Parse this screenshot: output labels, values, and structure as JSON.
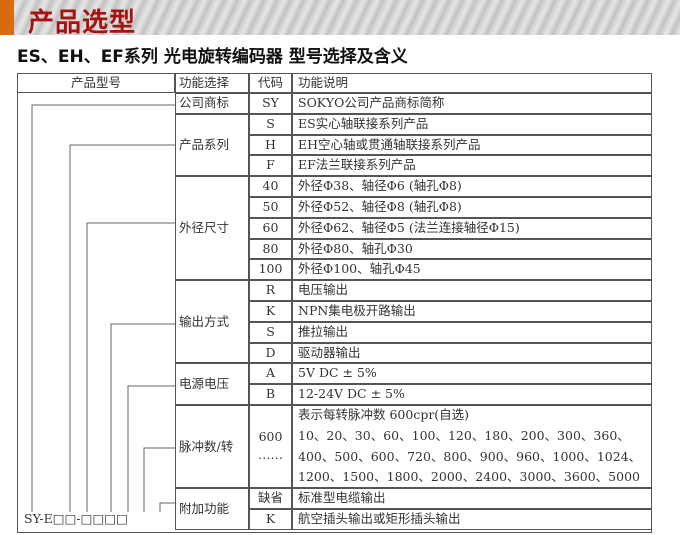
{
  "banner": {
    "title": "产品选型"
  },
  "subtitle": "ES、EH、EF系列 光电旋转编码器 型号选择及含义",
  "header": {
    "model": "产品型号",
    "function": "功能选择",
    "code": "代码",
    "desc": "功能说明"
  },
  "model_code": "SY-E□□-□□□□",
  "groups": [
    {
      "function": "公司商标",
      "rows": [
        {
          "code": "SY",
          "desc": "SOKYO公司产品商标简称"
        }
      ]
    },
    {
      "function": "产品系列",
      "rows": [
        {
          "code": "S",
          "desc": "ES实心轴联接系列产品"
        },
        {
          "code": "H",
          "desc": "EH空心轴或贯通轴联接系列产品"
        },
        {
          "code": "F",
          "desc": "EF法兰联接系列产品"
        }
      ]
    },
    {
      "function": "外径尺寸",
      "rows": [
        {
          "code": "40",
          "desc": "外径Φ38、轴径Φ6 (轴孔Φ8)"
        },
        {
          "code": "50",
          "desc": "外径Φ52、轴径Φ8 (轴孔Φ8)"
        },
        {
          "code": "60",
          "desc": "外径Φ62、轴径Φ5 (法兰连接轴径Φ15)"
        },
        {
          "code": "80",
          "desc": "外径Φ80、轴孔Φ30"
        },
        {
          "code": "100",
          "desc": "外径Φ100、轴孔Φ45"
        }
      ]
    },
    {
      "function": "输出方式",
      "rows": [
        {
          "code": "R",
          "desc": "电压输出"
        },
        {
          "code": "K",
          "desc": "NPN集电极开路输出"
        },
        {
          "code": "S",
          "desc": "推拉输出"
        },
        {
          "code": "D",
          "desc": "驱动器输出"
        }
      ]
    },
    {
      "function": "电源电压",
      "rows": [
        {
          "code": "A",
          "desc": "5V DC ± 5%"
        },
        {
          "code": "B",
          "desc": "12-24V DC ± 5%"
        }
      ]
    },
    {
      "function": "脉冲数/转",
      "code": [
        "600",
        "……"
      ],
      "lines": [
        "表示每转脉冲数 600cpr(自选)",
        "10、20、30、60、100、120、180、200、300、360、",
        "400、500、600、720、800、900、960、1000、1024、",
        "1200、1500、1800、2000、2400、3000、3600、5000"
      ]
    },
    {
      "function": "附加功能",
      "rows": [
        {
          "code": "缺省",
          "desc": "标准型电缆输出"
        },
        {
          "code": "K",
          "desc": "航空插头输出或矩形插头输出"
        }
      ]
    }
  ]
}
